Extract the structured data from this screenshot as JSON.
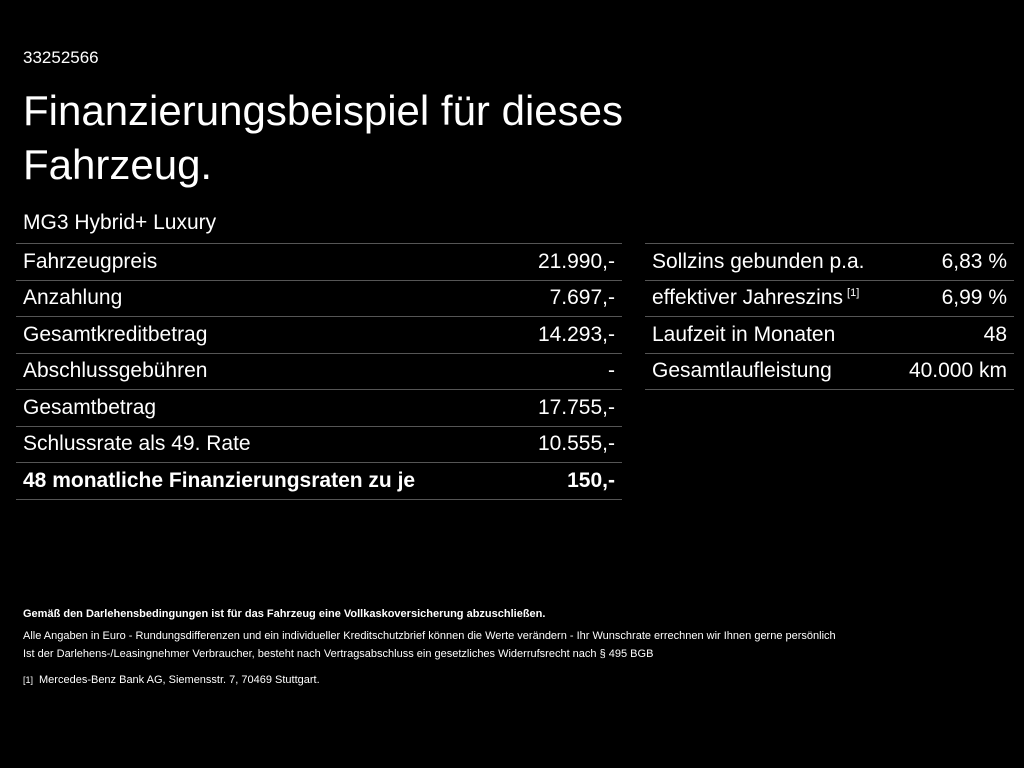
{
  "header": {
    "id": "33252566",
    "title": "Finanzierungsbeispiel für dieses Fahrzeug."
  },
  "model": "MG3 Hybrid+ Luxury",
  "left_table": {
    "rows": [
      {
        "label": "Fahrzeugpreis",
        "value": "21.990,-"
      },
      {
        "label": "Anzahlung",
        "value": "7.697,-"
      },
      {
        "label": "Gesamtkreditbetrag",
        "value": "14.293,-"
      },
      {
        "label": "Abschlussgebühren",
        "value": "-"
      },
      {
        "label": "Gesamtbetrag",
        "value": "17.755,-"
      },
      {
        "label": "Schlussrate als 49. Rate",
        "value": "10.555,-"
      },
      {
        "label": "48 monatliche Finanzierungsraten zu je",
        "value": "150,-"
      }
    ]
  },
  "right_table": {
    "rows": [
      {
        "label": "Sollzins gebunden p.a.",
        "value": "6,83 %"
      },
      {
        "label": "effektiver Jahreszins",
        "note": "[1]",
        "value": "6,99 %"
      },
      {
        "label": "Laufzeit in Monaten",
        "value": "48"
      },
      {
        "label": "Gesamtlaufleistung",
        "value": "40.000 km"
      }
    ]
  },
  "footer": {
    "insurance": "Gemäß den Darlehensbedingungen ist für das Fahrzeug eine Vollkaskoversicherung abzuschließen.",
    "lines": [
      "Alle Angaben in Euro - Rundungsdifferenzen und ein individueller Kreditschutzbrief können die Werte verändern - Ihr Wunschrate errechnen wir Ihnen gerne persönlich",
      "Ist der Darlehens-/Leasingnehmer Verbraucher, besteht nach Vertragsabschluss ein gesetzliches Widerrufsrecht nach § 495 BGB"
    ],
    "footnote": {
      "marker": "[1]",
      "text": "Mercedes-Benz Bank AG, Siemensstr. 7, 70469 Stuttgart."
    }
  }
}
